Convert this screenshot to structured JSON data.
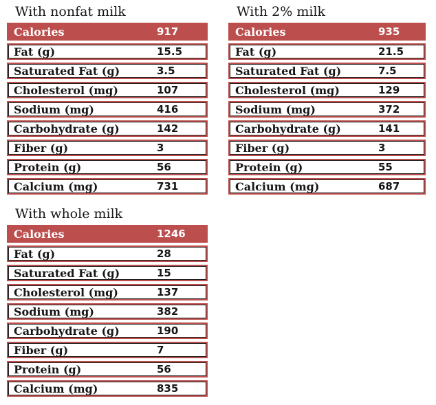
{
  "page_background": "#ffffff",
  "colors": {
    "table_red": "#BC4F4D",
    "header_text": "#ffffff",
    "body_text": "#161616",
    "inner_line": "#1c1c1c"
  },
  "chart_data": [
    {
      "type": "table",
      "title": "With nonfat milk",
      "header_row": [
        "Calories",
        "917"
      ],
      "rows": [
        [
          "Fat (g)",
          "15.5"
        ],
        [
          "Saturated Fat (g)",
          "3.5"
        ],
        [
          "Cholesterol (mg)",
          "107"
        ],
        [
          "Sodium (mg)",
          "416"
        ],
        [
          "Carbohydrate (g)",
          "142"
        ],
        [
          "Fiber (g)",
          "3"
        ],
        [
          "Protein (g)",
          "56"
        ],
        [
          "Calcium (mg)",
          "731"
        ]
      ]
    },
    {
      "type": "table",
      "title": "With 2% milk",
      "header_row": [
        "Calories",
        "935"
      ],
      "rows": [
        [
          "Fat (g)",
          "21.5"
        ],
        [
          "Saturated Fat (g)",
          "7.5"
        ],
        [
          "Cholesterol (mg)",
          "129"
        ],
        [
          "Sodium (mg)",
          "372"
        ],
        [
          "Carbohydrate (g)",
          "141"
        ],
        [
          "Fiber (g)",
          "3"
        ],
        [
          "Protein (g)",
          "55"
        ],
        [
          "Calcium (mg)",
          "687"
        ]
      ]
    },
    {
      "type": "table",
      "title": "With whole milk",
      "header_row": [
        "Calories",
        "1246"
      ],
      "rows": [
        [
          "Fat (g)",
          "28"
        ],
        [
          "Saturated Fat (g)",
          "15"
        ],
        [
          "Cholesterol (mg)",
          "137"
        ],
        [
          "Sodium (mg)",
          "382"
        ],
        [
          "Carbohydrate (g)",
          "190"
        ],
        [
          "Fiber (g)",
          "7"
        ],
        [
          "Protein (g)",
          "56"
        ],
        [
          "Calcium (mg)",
          "835"
        ]
      ]
    }
  ]
}
